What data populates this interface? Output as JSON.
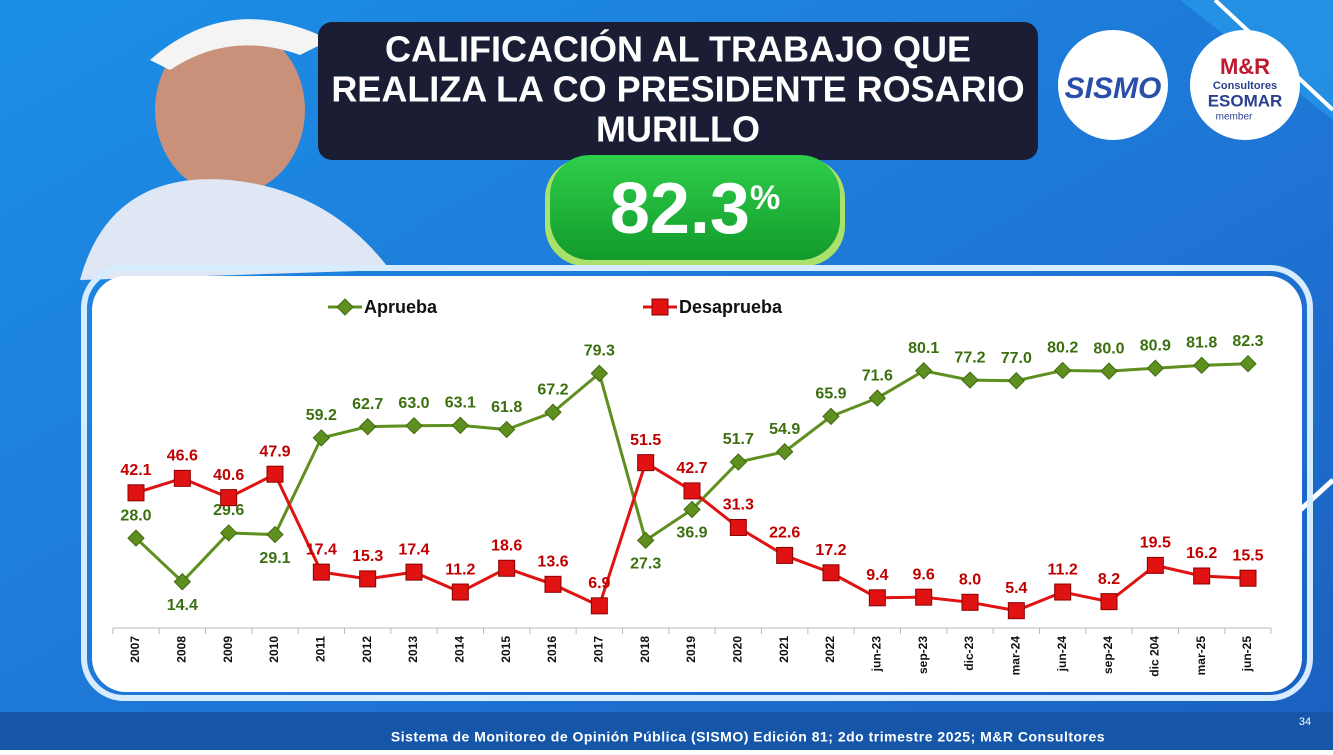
{
  "header": {
    "title_lines": [
      "CALIFICACIÓN AL TRABAJO QUE",
      "REALIZA LA CO PRESIDENTE ROSARIO",
      "MURILLO"
    ],
    "headline_value": "82.3",
    "headline_unit": "%"
  },
  "logos": {
    "sismo": "SISMO",
    "mr": "M&R",
    "mr_sub": "Consultores",
    "esomar": "ESOMAR",
    "esomar_sub": "member"
  },
  "chart_data": {
    "type": "line",
    "categories": [
      "2007",
      "2008",
      "2009",
      "2010",
      "2011",
      "2012",
      "2013",
      "2014",
      "2015",
      "2016",
      "2017",
      "2018",
      "2019",
      "2020",
      "2021",
      "2022",
      "jun-23",
      "sep-23",
      "dic-23",
      "mar-24",
      "jun-24",
      "sep-24",
      "dic 204",
      "mar-25",
      "jun-25"
    ],
    "series": [
      {
        "name": "Aprueba",
        "color": "#5e8f1f",
        "marker": "diamond",
        "values": [
          28.0,
          14.4,
          29.6,
          29.1,
          59.2,
          62.7,
          63.0,
          63.1,
          61.8,
          67.2,
          79.3,
          27.3,
          36.9,
          51.7,
          54.9,
          65.9,
          71.6,
          80.1,
          77.2,
          77.0,
          80.2,
          80.0,
          80.9,
          81.8,
          82.3
        ],
        "value_labels": [
          "28.0",
          "14.4",
          "29.6",
          "29.1",
          "59.2",
          "62.7",
          "63.0",
          "63.1",
          "61.8",
          "67.2",
          "79.3",
          "27.3",
          "36.9",
          "51.7",
          "54.9",
          "65.9",
          "71.6",
          "80.1",
          "77.2",
          "77.0",
          "80.2",
          "80.0",
          "80.9",
          "81.8",
          "82.3"
        ]
      },
      {
        "name": "Desaprueba",
        "color": "#e01212",
        "marker": "square",
        "values": [
          42.1,
          46.6,
          40.6,
          47.9,
          17.4,
          15.3,
          17.4,
          11.2,
          18.6,
          13.6,
          6.9,
          51.5,
          42.7,
          31.3,
          22.6,
          17.2,
          9.4,
          9.6,
          8.0,
          5.4,
          11.2,
          8.2,
          19.5,
          16.2,
          15.5
        ],
        "value_labels": [
          "42.1",
          "46.6",
          "40.6",
          "47.9",
          "17.4",
          "15.3",
          "17.4",
          "11.2",
          "18.6",
          "13.6",
          "6.9",
          "51.5",
          "42.7",
          "31.3",
          "22.6",
          "17.2",
          "9.4",
          "9.6",
          "8.0",
          "5.4",
          "11.2",
          "8.2",
          "19.5",
          "16.2",
          "15.5"
        ]
      }
    ],
    "ylim": [
      0,
      90
    ],
    "legend": "top"
  },
  "footer": {
    "source": "Sistema de Monitoreo de Opinión Pública (SISMO) Edición 81; 2do trimestre 2025; M&R Consultores",
    "page": "34"
  }
}
